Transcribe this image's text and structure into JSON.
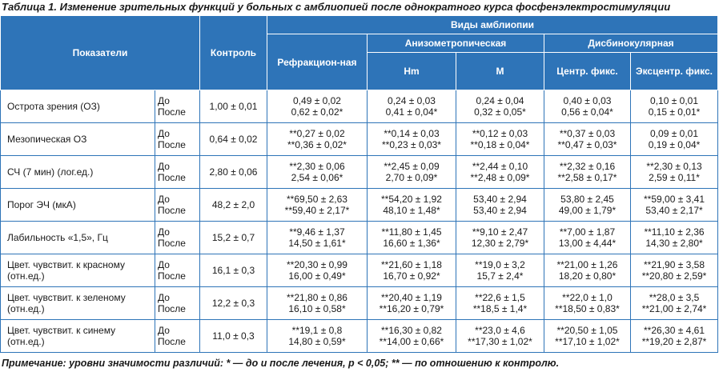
{
  "caption": "Таблица 1. Изменение зрительных функций у больных с амблиопией после однократного курса фосфенэлектростимуляции",
  "headers": {
    "indicators": "Показатели",
    "control": "Контроль",
    "types": "Виды амблиопии",
    "refraction": "Рефракцион-ная",
    "anisometropic": "Анизометропическая",
    "hm": "Hm",
    "m": "M",
    "disbinocular": "Дисбинокулярная",
    "central": "Центр. фикс.",
    "eccentric": "Эксцентр. фикс."
  },
  "rows": [
    {
      "name": "Острота зрения (ОЗ)",
      "before": "До",
      "after": "После",
      "control": "1,00 ± 0,01",
      "vals": [
        [
          "0,49 ± 0,02",
          "0,62 ± 0,02*"
        ],
        [
          "0,24 ± 0,03",
          "0,41 ± 0,04*"
        ],
        [
          "0,24 ± 0,04",
          "0,32 ± 0,05*"
        ],
        [
          "0,40 ± 0,03",
          "0,56 ± 0,04*"
        ],
        [
          "0,10 ± 0,01",
          "0,15 ± 0,01*"
        ]
      ]
    },
    {
      "name": "Мезопическая ОЗ",
      "before": "До",
      "after": "После",
      "control": "0,64 ± 0,02",
      "vals": [
        [
          "**0,27 ± 0,02",
          "**0,36 ± 0,02*"
        ],
        [
          "**0,14 ± 0,03",
          "**0,23 ± 0,03*"
        ],
        [
          "**0,12 ± 0,03",
          "**0,18 ± 0,04*"
        ],
        [
          "**0,37 ± 0,03",
          "**0,47 ± 0,03*"
        ],
        [
          "0,09 ± 0,01",
          "0,19 ± 0,04*"
        ]
      ]
    },
    {
      "name": "СЧ (7 мин) (лог.ед.)",
      "before": "До",
      "after": "После",
      "control": "2,80 ± 0,06",
      "vals": [
        [
          "**2,30 ± 0,06",
          "2,54 ± 0,06*"
        ],
        [
          "**2,45 ± 0,09",
          "2,70 ± 0,09*"
        ],
        [
          "**2,44 ± 0,10",
          "**2,48 ± 0,09*"
        ],
        [
          "**2,32 ± 0,16",
          "**2,58 ± 0,17*"
        ],
        [
          "**2,30 ± 0,13",
          "2,59 ± 0,11*"
        ]
      ]
    },
    {
      "name": "Порог ЭЧ (мкА)",
      "before": "До",
      "after": "После",
      "control": "48,2 ± 2,0",
      "vals": [
        [
          "**69,50 ± 2,63",
          "**59,40 ± 2,17*"
        ],
        [
          "**54,20 ± 1,92",
          "48,10 ± 1,48*"
        ],
        [
          "53,40 ± 2,94",
          "53,40 ± 2,94"
        ],
        [
          "53,80 ± 2,45",
          "49,00 ± 1,79*"
        ],
        [
          "**59,00 ± 3,41",
          "53,40 ± 2,17*"
        ]
      ]
    },
    {
      "name": "Лабильность «1,5», Гц",
      "before": "До",
      "after": "После",
      "control": "15,2 ± 0,7",
      "vals": [
        [
          "**9,46 ± 1,37",
          "14,50 ± 1,61*"
        ],
        [
          "**11,80 ± 1,45",
          "16,60 ± 1,36*"
        ],
        [
          "**9,10 ± 2,47",
          "12,30 ± 2,79*"
        ],
        [
          "**7,00 ± 1,87",
          "13,00 ± 4,44*"
        ],
        [
          "**11,10 ± 2,36",
          "14,30 ± 2,80*"
        ]
      ]
    },
    {
      "name": "Цвет. чувствит. к красному (отн.ед.)",
      "before": "До",
      "after": "После",
      "control": "16,1 ± 0,3",
      "vals": [
        [
          "**20,30 ± 0,99",
          "16,00 ± 0,49*"
        ],
        [
          "**21,60 ± 1,18",
          "16,70 ± 0,92*"
        ],
        [
          "**19,0 ± 3,2",
          "15,7 ± 2,4*"
        ],
        [
          "**21,00 ± 1,26",
          "18,20 ± 0,80*"
        ],
        [
          "**21,90 ± 3,58",
          "**20,80 ± 2,59*"
        ]
      ]
    },
    {
      "name": "Цвет. чувствит. к зеленому (отн.ед.)",
      "before": "До",
      "after": "После",
      "control": "12,2 ± 0,3",
      "vals": [
        [
          "**21,80 ± 0,86",
          "16,10 ± 0,58*"
        ],
        [
          "**20,40 ± 1,19",
          "**16,20 ± 0,79*"
        ],
        [
          "**22,6 ± 1,5",
          "**18,5 ± 1,4*"
        ],
        [
          "**22,0 ± 1,0",
          "**18,50 ± 0,83*"
        ],
        [
          "**28,0 ± 3,5",
          "**21,00 ± 2,74*"
        ]
      ]
    },
    {
      "name": "Цвет. чувствит. к синему (отн.ед.)",
      "before": "До",
      "after": "После",
      "control": "11,0 ± 0,3",
      "vals": [
        [
          "**19,1 ± 0,8",
          "14,80 ± 0,59*"
        ],
        [
          "**16,30 ± 0,82",
          "**14,00 ± 0,66*"
        ],
        [
          "**23,0 ± 4,6",
          "**17,30 ± 1,02*"
        ],
        [
          "**20,50 ± 1,05",
          "**17,10 ± 1,02*"
        ],
        [
          "**26,30 ± 4,61",
          "**19,20 ± 2,87*"
        ]
      ]
    }
  ],
  "note": "Примечание: уровни значимости различий: * — до и после лечения, p < 0,05; ** — по отношению к контролю.",
  "colors": {
    "header": "#2e74b8",
    "border": "#2e74b8"
  }
}
